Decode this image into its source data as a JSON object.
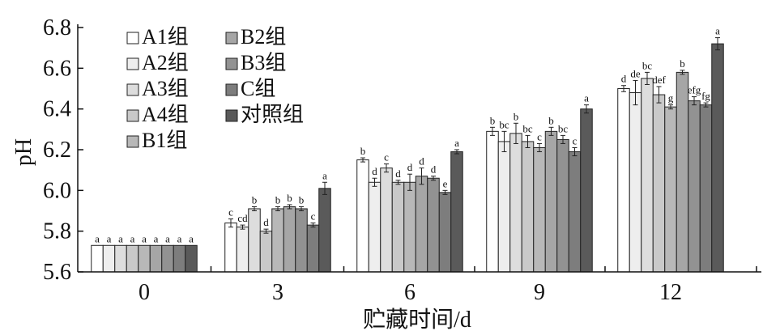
{
  "chart_data": {
    "type": "bar",
    "xlabel": "贮藏时间/d",
    "ylabel": "pH",
    "ylim": [
      5.6,
      6.8
    ],
    "yticks": [
      "5.6",
      "5.8",
      "6.0",
      "6.2",
      "6.4",
      "6.6",
      "6.8"
    ],
    "grid": false,
    "legend_position": "top-left",
    "categories": [
      "0",
      "3",
      "6",
      "9",
      "12"
    ],
    "series": [
      {
        "name": "A1组",
        "color": "#ffffff",
        "values": [
          5.73,
          5.84,
          6.15,
          6.29,
          6.5
        ],
        "errors": [
          0.0,
          0.02,
          0.01,
          0.02,
          0.015
        ],
        "labels": [
          "a",
          "c",
          "b",
          "b",
          "d"
        ]
      },
      {
        "name": "A2组",
        "color": "#eeeeee",
        "values": [
          5.73,
          5.82,
          6.04,
          6.24,
          6.48
        ],
        "errors": [
          0.0,
          0.01,
          0.02,
          0.05,
          0.06
        ],
        "labels": [
          "a",
          "cd",
          "d",
          "bc",
          "de"
        ]
      },
      {
        "name": "A3组",
        "color": "#dddddd",
        "values": [
          5.73,
          5.91,
          6.11,
          6.28,
          6.55
        ],
        "errors": [
          0.0,
          0.01,
          0.02,
          0.05,
          0.03
        ],
        "labels": [
          "a",
          "b",
          "c",
          "b",
          "bc"
        ]
      },
      {
        "name": "A4组",
        "color": "#c9c9c9",
        "values": [
          5.73,
          5.8,
          6.04,
          6.24,
          6.47
        ],
        "errors": [
          0.0,
          0.01,
          0.01,
          0.03,
          0.04
        ],
        "labels": [
          "a",
          "d",
          "d",
          "bc",
          "def"
        ]
      },
      {
        "name": "B1组",
        "color": "#b8b8b8",
        "values": [
          5.73,
          5.91,
          6.04,
          6.21,
          6.41
        ],
        "errors": [
          0.0,
          0.01,
          0.04,
          0.02,
          0.01
        ],
        "labels": [
          "a",
          "b",
          "d",
          "c",
          "g"
        ]
      },
      {
        "name": "B2组",
        "color": "#a6a6a6",
        "values": [
          5.73,
          5.92,
          6.07,
          6.29,
          6.58
        ],
        "errors": [
          0.0,
          0.01,
          0.04,
          0.02,
          0.01
        ],
        "labels": [
          "a",
          "b",
          "d",
          "b",
          "b"
        ]
      },
      {
        "name": "B3组",
        "color": "#929292",
        "values": [
          5.73,
          5.91,
          6.06,
          6.25,
          6.44
        ],
        "errors": [
          0.0,
          0.01,
          0.01,
          0.02,
          0.02
        ],
        "labels": [
          "a",
          "b",
          "d",
          "bc",
          "efg"
        ]
      },
      {
        "name": "C组",
        "color": "#7d7d7d",
        "values": [
          5.73,
          5.83,
          5.99,
          6.19,
          6.42
        ],
        "errors": [
          0.0,
          0.01,
          0.01,
          0.02,
          0.01
        ],
        "labels": [
          "a",
          "c",
          "e",
          "c",
          "fg"
        ]
      },
      {
        "name": "对照组",
        "color": "#5a5a5a",
        "values": [
          5.73,
          6.01,
          6.19,
          6.4,
          6.72
        ],
        "errors": [
          0.0,
          0.03,
          0.01,
          0.02,
          0.03
        ],
        "labels": [
          "a",
          "a",
          "a",
          "a",
          "a"
        ]
      }
    ]
  }
}
